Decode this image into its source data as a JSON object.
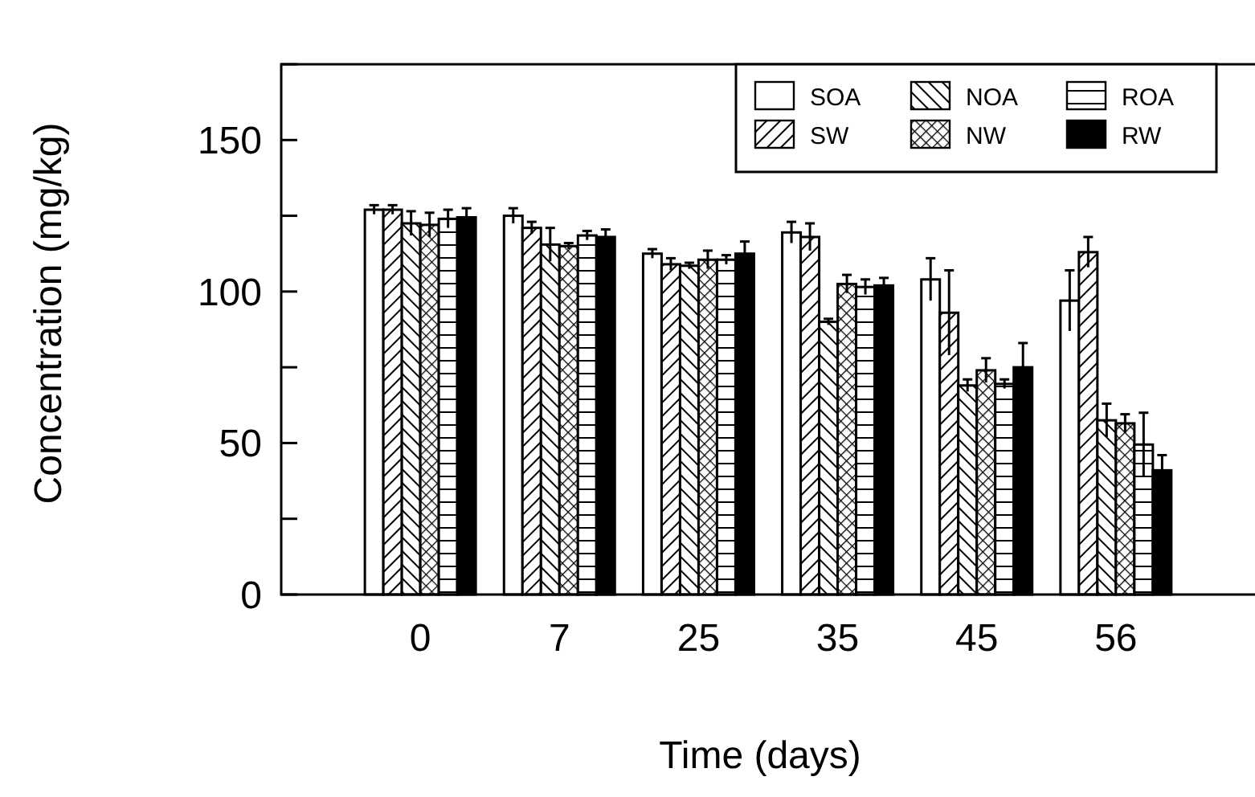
{
  "chart_data": {
    "type": "bar",
    "xlabel": "Time (days)",
    "ylabel": "Concentration (mg/kg)",
    "categories": [
      "0",
      "7",
      "25",
      "35",
      "45",
      "56"
    ],
    "ylim": [
      0,
      175
    ],
    "yticks": [
      0,
      {
        "value": 25,
        "label": null
      },
      50,
      {
        "value": 75,
        "label": null
      },
      100,
      {
        "value": 125,
        "label": null
      },
      150,
      {
        "value": 175,
        "label": null
      }
    ],
    "legend": "top right",
    "grid": false,
    "series": [
      {
        "name": "SOA",
        "color": "#ffffff",
        "values": [
          127,
          125,
          112.5,
          119.5,
          104,
          97
        ],
        "errors": [
          1.5,
          2.5,
          1.5,
          3.5,
          7,
          10
        ]
      },
      {
        "name": "SW",
        "color": "#000000",
        "values": [
          127,
          121,
          109,
          118,
          93,
          113
        ],
        "errors": [
          1.5,
          2,
          2,
          4.5,
          14,
          5
        ]
      },
      {
        "name": "NOA",
        "color": "#000000",
        "values": [
          122.5,
          115.5,
          108.5,
          90,
          69,
          57.5
        ],
        "errors": [
          4,
          5.5,
          1,
          1,
          2,
          5.5
        ]
      },
      {
        "name": "NW",
        "color": "#000000",
        "values": [
          122,
          115,
          110.5,
          102.5,
          74,
          56.5
        ],
        "errors": [
          4,
          1,
          3,
          3,
          4,
          3
        ]
      },
      {
        "name": "ROA",
        "color": "#000000",
        "values": [
          124,
          118.5,
          110.5,
          101.5,
          69.5,
          49.5
        ],
        "errors": [
          3,
          1.5,
          1.5,
          2.5,
          1.5,
          10.5
        ]
      },
      {
        "name": "RW",
        "color": "#000000",
        "values": [
          124.5,
          118,
          112.5,
          102,
          75,
          41
        ],
        "errors": [
          3,
          2.5,
          4,
          2.5,
          8,
          5
        ]
      }
    ]
  }
}
